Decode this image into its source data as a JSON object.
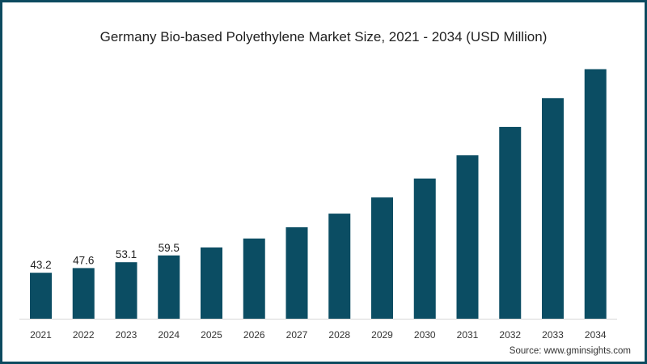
{
  "chart_data": {
    "type": "bar",
    "title": "Germany Bio-based Polyethylene Market Size, 2021 - 2034 (USD Million)",
    "xlabel": "",
    "ylabel": "",
    "categories": [
      "2021",
      "2022",
      "2023",
      "2024",
      "2025",
      "2026",
      "2027",
      "2028",
      "2029",
      "2030",
      "2031",
      "2032",
      "2033",
      "2034"
    ],
    "values": [
      43.2,
      47.6,
      53.1,
      59.5,
      67.0,
      75.4,
      86.0,
      98.8,
      114.0,
      131.8,
      153.6,
      180.3,
      207.4,
      234.6
    ],
    "data_labels": [
      "43.2",
      "47.6",
      "53.1",
      "59.5",
      null,
      null,
      null,
      null,
      null,
      null,
      null,
      null,
      null,
      null
    ],
    "ylim": [
      0,
      254
    ],
    "grid": false,
    "bar_color": "#0b4d63",
    "source": "Source: www.gminsights.com"
  }
}
